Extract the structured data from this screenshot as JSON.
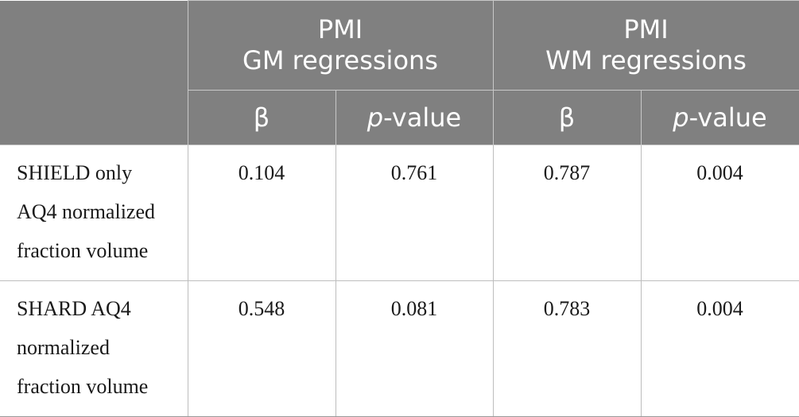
{
  "header": {
    "corner": "",
    "groups": [
      {
        "line1": "PMI",
        "line2": "GM regressions"
      },
      {
        "line1": "PMI",
        "line2": "WM regressions"
      }
    ],
    "subheaders": {
      "beta": "β",
      "p_prefix": "p",
      "p_suffix": "-value"
    }
  },
  "rows": [
    {
      "label_lines": [
        "SHIELD only",
        "AQ4 normalized",
        "fraction volume"
      ],
      "gm_beta": "0.104",
      "gm_p": "0.761",
      "wm_beta": "0.787",
      "wm_p": "0.004"
    },
    {
      "label_lines": [
        "SHARD AQ4",
        "normalized",
        "fraction volume"
      ],
      "gm_beta": "0.548",
      "gm_p": "0.081",
      "wm_beta": "0.783",
      "wm_p": "0.004"
    }
  ]
}
